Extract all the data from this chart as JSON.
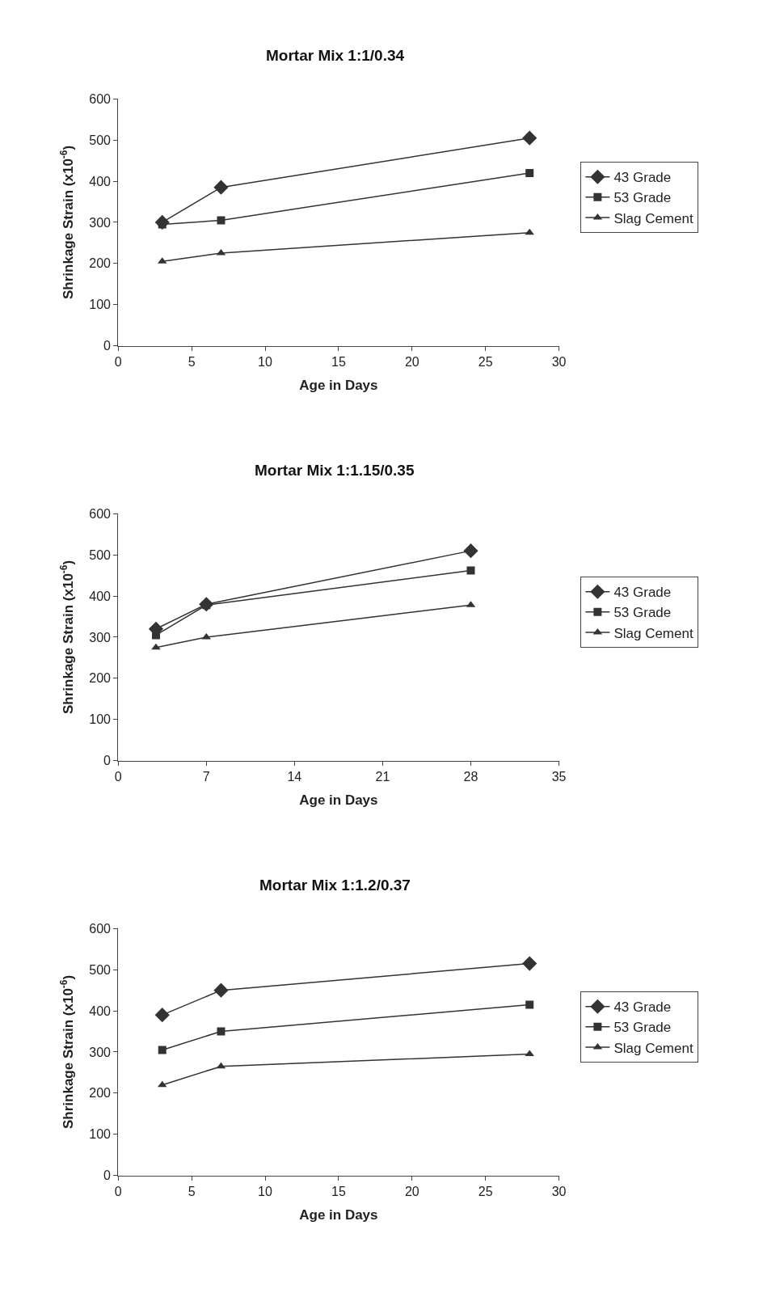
{
  "chart_data": [
    {
      "type": "line",
      "title": "Mortar Mix 1:1/0.34",
      "xlabel": "Age in Days",
      "ylabel": "Shrinkage Strain (x10$^{-6}$)",
      "x": [
        3,
        7,
        28
      ],
      "xlim": [
        0,
        30
      ],
      "xticks": [
        0,
        5,
        10,
        15,
        20,
        25,
        30
      ],
      "ylim": [
        0,
        600
      ],
      "yticks": [
        0,
        100,
        200,
        300,
        400,
        500,
        600
      ],
      "legend": "right",
      "series": [
        {
          "name": "43 Grade",
          "color": "#333333",
          "marker": "diamond",
          "values": [
            300,
            385,
            505
          ]
        },
        {
          "name": "53 Grade",
          "color": "#333333",
          "marker": "square",
          "values": [
            295,
            305,
            420
          ]
        },
        {
          "name": "Slag Cement",
          "color": "#333333",
          "marker": "triangle",
          "values": [
            205,
            225,
            275
          ]
        }
      ]
    },
    {
      "type": "line",
      "title": "Mortar Mix 1:1.15/0.35",
      "xlabel": "Age in Days",
      "ylabel": "Shrinkage Strain (x10$^{-6}$)",
      "x": [
        3,
        7,
        28
      ],
      "xlim": [
        0,
        35
      ],
      "xticks": [
        0,
        7,
        14,
        21,
        28,
        35
      ],
      "ylim": [
        0,
        600
      ],
      "yticks": [
        0,
        100,
        200,
        300,
        400,
        500,
        600
      ],
      "legend": "right",
      "series": [
        {
          "name": "43 Grade",
          "color": "#333333",
          "marker": "diamond",
          "values": [
            320,
            380,
            510
          ]
        },
        {
          "name": "53 Grade",
          "color": "#333333",
          "marker": "square",
          "values": [
            305,
            378,
            462
          ]
        },
        {
          "name": "Slag Cement",
          "color": "#333333",
          "marker": "triangle",
          "values": [
            275,
            300,
            378
          ]
        }
      ]
    },
    {
      "type": "line",
      "title": "Mortar Mix 1:1.2/0.37",
      "xlabel": "Age in Days",
      "ylabel": "Shrinkage Strain (x10$^{-6}$)",
      "x": [
        3,
        7,
        28
      ],
      "xlim": [
        0,
        30
      ],
      "xticks": [
        0,
        5,
        10,
        15,
        20,
        25,
        30
      ],
      "ylim": [
        0,
        600
      ],
      "yticks": [
        0,
        100,
        200,
        300,
        400,
        500,
        600
      ],
      "legend": "right",
      "series": [
        {
          "name": "43 Grade",
          "color": "#333333",
          "marker": "diamond",
          "values": [
            390,
            450,
            515
          ]
        },
        {
          "name": "53 Grade",
          "color": "#333333",
          "marker": "square",
          "values": [
            305,
            350,
            415
          ]
        },
        {
          "name": "Slag Cement",
          "color": "#333333",
          "marker": "triangle",
          "values": [
            220,
            265,
            295
          ]
        }
      ]
    }
  ]
}
